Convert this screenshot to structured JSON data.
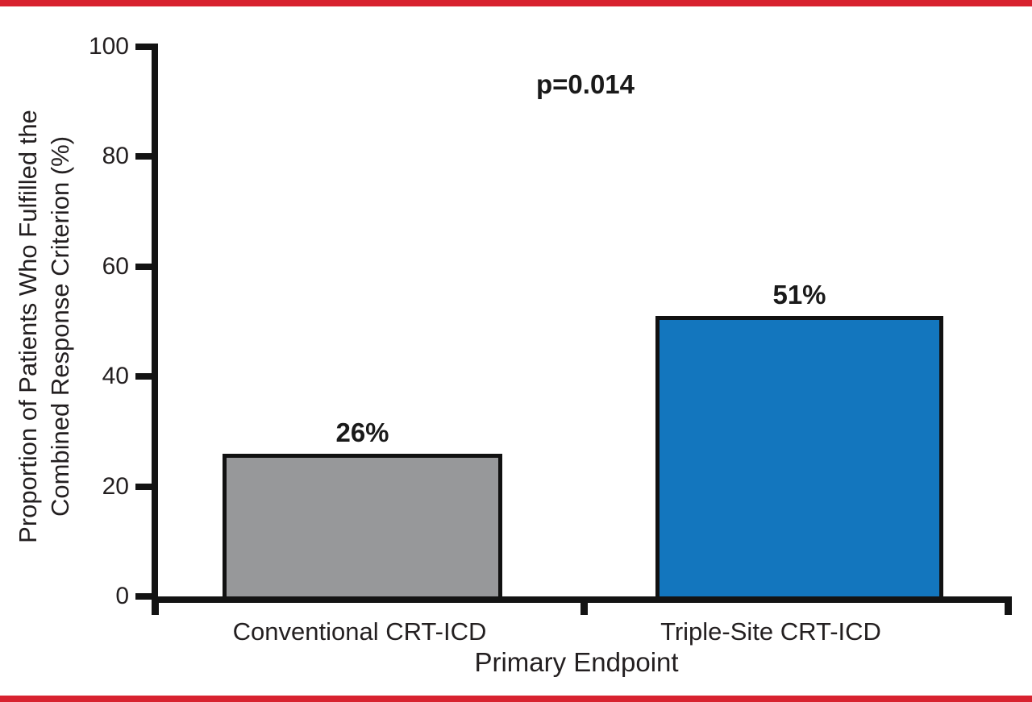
{
  "figure": {
    "background": "#ffffff",
    "border_rule_color": "#d8222f"
  },
  "chart_data": {
    "type": "bar",
    "title": "",
    "categories": [
      "Conventional CRT-ICD",
      "Triple-Site CRT-ICD"
    ],
    "values": [
      26,
      51
    ],
    "bar_value_labels": [
      "26%",
      "51%"
    ],
    "bar_colors": [
      "#97989a",
      "#1376be"
    ],
    "bar_border_color": "#111111",
    "annotation": "p=0.014",
    "xlabel": "Primary Endpoint",
    "ylabel": "Proportion of Patients Who Fulfilled the Combined Response Criterion (%)",
    "ylabel_line1": "Proportion of Patients Who Fulfilled the",
    "ylabel_line2": "Combined Response Criterion (%)",
    "ylim": [
      0,
      100
    ],
    "yticks": [
      0,
      20,
      40,
      60,
      80,
      100
    ],
    "grid": false,
    "legend_position": "none"
  }
}
